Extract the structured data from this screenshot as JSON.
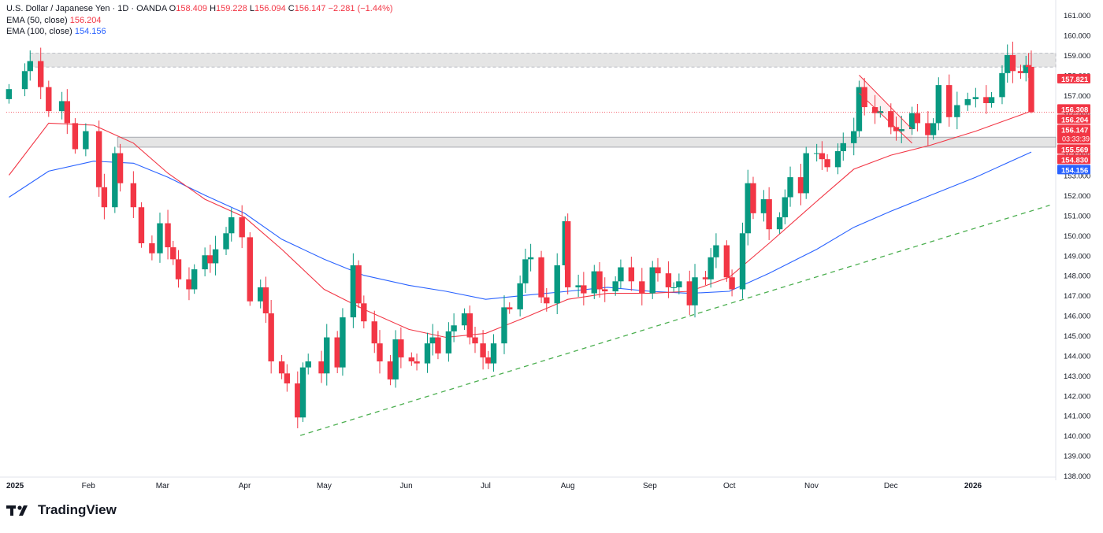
{
  "legend": {
    "symbol": "U.S. Dollar / Japanese Yen · 1D · OANDA",
    "o_label": "O",
    "o_value": "158.409",
    "h_label": "H",
    "h_value": "159.228",
    "l_label": "L",
    "l_value": "156.094",
    "c_label": "C",
    "c_value": "156.147",
    "change": "−2.281 (−1.44%)",
    "ema50_label": "EMA (50, close)",
    "ema50_value": "156.204",
    "ema100_label": "EMA (100, close)",
    "ema100_value": "154.156"
  },
  "brand": {
    "name": "TradingView"
  },
  "colors": {
    "up": "#089981",
    "down": "#f23645",
    "ema50": "#f23645",
    "ema100": "#2962ff",
    "trendline": "#4caf50",
    "zone": "#e0e0e0"
  },
  "chart_data": {
    "type": "candlestick",
    "title": "U.S. Dollar / Japanese Yen · 1D · OANDA",
    "x_tick_labels": [
      "2025",
      "Feb",
      "Mar",
      "Apr",
      "May",
      "Jun",
      "Jul",
      "Aug",
      "Sep",
      "Oct",
      "Nov",
      "Dec",
      "2026"
    ],
    "y_tick_labels": [
      "138.000",
      "139.000",
      "140.000",
      "141.000",
      "142.000",
      "143.000",
      "144.000",
      "145.000",
      "146.000",
      "147.000",
      "148.000",
      "149.000",
      "150.000",
      "151.000",
      "152.000",
      "153.000",
      "154.000",
      "155.000",
      "156.000",
      "157.000",
      "158.000",
      "159.000",
      "160.000",
      "161.000"
    ],
    "ylim": [
      138,
      161.2
    ],
    "close_path": [
      [
        "2025-01-02",
        157.3
      ],
      [
        "2025-01-08",
        158.2
      ],
      [
        "2025-01-10",
        158.7
      ],
      [
        "2025-01-14",
        157.4
      ],
      [
        "2025-01-17",
        156.2
      ],
      [
        "2025-01-22",
        156.7
      ],
      [
        "2025-01-24",
        155.6
      ],
      [
        "2025-01-27",
        154.3
      ],
      [
        "2025-01-31",
        155.2
      ],
      [
        "2025-02-05",
        152.4
      ],
      [
        "2025-02-07",
        151.4
      ],
      [
        "2025-02-11",
        154.1
      ],
      [
        "2025-02-13",
        152.6
      ],
      [
        "2025-02-18",
        151.4
      ],
      [
        "2025-02-21",
        149.6
      ],
      [
        "2025-02-25",
        149.1
      ],
      [
        "2025-02-28",
        150.6
      ],
      [
        "2025-03-03",
        149.4
      ],
      [
        "2025-03-05",
        148.8
      ],
      [
        "2025-03-07",
        147.8
      ],
      [
        "2025-03-11",
        147.3
      ],
      [
        "2025-03-13",
        148.3
      ],
      [
        "2025-03-17",
        149.0
      ],
      [
        "2025-03-19",
        148.6
      ],
      [
        "2025-03-21",
        149.3
      ],
      [
        "2025-03-25",
        150.1
      ],
      [
        "2025-03-27",
        150.9
      ],
      [
        "2025-03-31",
        149.9
      ],
      [
        "2025-04-03",
        146.7
      ],
      [
        "2025-04-07",
        147.4
      ],
      [
        "2025-04-09",
        146.1
      ],
      [
        "2025-04-11",
        143.7
      ],
      [
        "2025-04-15",
        143.1
      ],
      [
        "2025-04-17",
        142.6
      ],
      [
        "2025-04-21",
        140.9
      ],
      [
        "2025-04-23",
        143.4
      ],
      [
        "2025-04-25",
        143.7
      ],
      [
        "2025-04-30",
        143.1
      ],
      [
        "2025-05-02",
        144.9
      ],
      [
        "2025-05-06",
        143.4
      ],
      [
        "2025-05-08",
        145.9
      ],
      [
        "2025-05-12",
        148.5
      ],
      [
        "2025-05-14",
        146.6
      ],
      [
        "2025-05-16",
        145.7
      ],
      [
        "2025-05-20",
        144.6
      ],
      [
        "2025-05-22",
        143.7
      ],
      [
        "2025-05-26",
        142.8
      ],
      [
        "2025-05-28",
        144.8
      ],
      [
        "2025-05-30",
        143.9
      ],
      [
        "2025-06-03",
        143.7
      ],
      [
        "2025-06-05",
        143.6
      ],
      [
        "2025-06-09",
        144.6
      ],
      [
        "2025-06-11",
        144.9
      ],
      [
        "2025-06-13",
        144.1
      ],
      [
        "2025-06-17",
        145.2
      ],
      [
        "2025-06-19",
        145.5
      ],
      [
        "2025-06-23",
        146.1
      ],
      [
        "2025-06-25",
        144.9
      ],
      [
        "2025-06-27",
        144.6
      ],
      [
        "2025-06-30",
        143.9
      ],
      [
        "2025-07-02",
        143.6
      ],
      [
        "2025-07-04",
        144.6
      ],
      [
        "2025-07-08",
        146.4
      ],
      [
        "2025-07-10",
        146.3
      ],
      [
        "2025-07-14",
        147.6
      ],
      [
        "2025-07-16",
        148.8
      ],
      [
        "2025-07-18",
        148.9
      ],
      [
        "2025-07-22",
        146.9
      ],
      [
        "2025-07-24",
        146.6
      ],
      [
        "2025-07-28",
        148.5
      ],
      [
        "2025-07-31",
        150.7
      ],
      [
        "2025-08-01",
        147.4
      ],
      [
        "2025-08-05",
        147.5
      ],
      [
        "2025-08-07",
        147.1
      ],
      [
        "2025-08-11",
        148.2
      ],
      [
        "2025-08-13",
        147.3
      ],
      [
        "2025-08-15",
        147.2
      ],
      [
        "2025-08-19",
        147.7
      ],
      [
        "2025-08-21",
        148.4
      ],
      [
        "2025-08-25",
        147.7
      ],
      [
        "2025-08-29",
        147.1
      ],
      [
        "2025-09-02",
        148.4
      ],
      [
        "2025-09-04",
        148.1
      ],
      [
        "2025-09-08",
        147.4
      ],
      [
        "2025-09-10",
        147.4
      ],
      [
        "2025-09-12",
        147.7
      ],
      [
        "2025-09-16",
        146.5
      ],
      [
        "2025-09-18",
        147.9
      ],
      [
        "2025-09-22",
        147.8
      ],
      [
        "2025-09-24",
        148.9
      ],
      [
        "2025-09-26",
        149.5
      ],
      [
        "2025-09-30",
        147.9
      ],
      [
        "2025-10-02",
        147.3
      ],
      [
        "2025-10-06",
        150.1
      ],
      [
        "2025-10-08",
        152.6
      ],
      [
        "2025-10-10",
        151.1
      ],
      [
        "2025-10-14",
        151.8
      ],
      [
        "2025-10-16",
        150.3
      ],
      [
        "2025-10-20",
        150.9
      ],
      [
        "2025-10-22",
        151.9
      ],
      [
        "2025-10-24",
        152.9
      ],
      [
        "2025-10-28",
        152.1
      ],
      [
        "2025-10-30",
        154.1
      ],
      [
        "2025-11-03",
        154.1
      ],
      [
        "2025-11-05",
        153.8
      ],
      [
        "2025-11-07",
        153.4
      ],
      [
        "2025-11-11",
        154.2
      ],
      [
        "2025-11-13",
        154.6
      ],
      [
        "2025-11-17",
        155.2
      ],
      [
        "2025-11-19",
        157.4
      ],
      [
        "2025-11-21",
        156.4
      ],
      [
        "2025-11-25",
        156.1
      ],
      [
        "2025-11-27",
        156.2
      ],
      [
        "2025-12-01",
        155.4
      ],
      [
        "2025-12-03",
        155.2
      ],
      [
        "2025-12-05",
        155.3
      ],
      [
        "2025-12-09",
        156.1
      ],
      [
        "2025-12-11",
        155.6
      ],
      [
        "2025-12-15",
        155.0
      ],
      [
        "2025-12-17",
        155.6
      ],
      [
        "2025-12-19",
        157.5
      ],
      [
        "2025-12-23",
        155.9
      ],
      [
        "2025-12-26",
        156.5
      ],
      [
        "2025-12-30",
        156.8
      ],
      [
        "2026-01-02",
        156.9
      ],
      [
        "2026-01-06",
        156.6
      ],
      [
        "2026-01-08",
        156.9
      ],
      [
        "2026-01-12",
        158.1
      ],
      [
        "2026-01-14",
        159.0
      ],
      [
        "2026-01-16",
        158.2
      ],
      [
        "2026-01-19",
        158.1
      ],
      [
        "2026-01-21",
        158.5
      ],
      [
        "2026-01-22",
        158.4
      ],
      [
        "2026-01-23",
        156.147
      ]
    ],
    "last_bar": {
      "open": 158.409,
      "high": 159.228,
      "low": 156.094,
      "close": 156.147
    },
    "ema50_path": [
      [
        "2025-01-02",
        153.0
      ],
      [
        "2025-01-17",
        155.6
      ],
      [
        "2025-02-03",
        155.5
      ],
      [
        "2025-02-18",
        154.6
      ],
      [
        "2025-03-03",
        153.1
      ],
      [
        "2025-03-17",
        151.8
      ],
      [
        "2025-04-01",
        150.9
      ],
      [
        "2025-04-15",
        149.3
      ],
      [
        "2025-05-01",
        147.3
      ],
      [
        "2025-05-16",
        146.3
      ],
      [
        "2025-06-02",
        145.3
      ],
      [
        "2025-06-16",
        144.9
      ],
      [
        "2025-07-01",
        145.1
      ],
      [
        "2025-07-16",
        145.9
      ],
      [
        "2025-08-01",
        146.8
      ],
      [
        "2025-08-16",
        147.1
      ],
      [
        "2025-09-01",
        147.1
      ],
      [
        "2025-09-16",
        147.2
      ],
      [
        "2025-10-01",
        147.9
      ],
      [
        "2025-10-16",
        149.6
      ],
      [
        "2025-11-03",
        151.7
      ],
      [
        "2025-11-17",
        153.3
      ],
      [
        "2025-12-01",
        154.0
      ],
      [
        "2025-12-16",
        154.5
      ],
      [
        "2026-01-02",
        155.2
      ],
      [
        "2026-01-23",
        156.204
      ]
    ],
    "ema100_path": [
      [
        "2025-01-02",
        151.9
      ],
      [
        "2025-01-17",
        153.2
      ],
      [
        "2025-02-03",
        153.7
      ],
      [
        "2025-02-18",
        153.6
      ],
      [
        "2025-03-03",
        152.9
      ],
      [
        "2025-03-17",
        152.0
      ],
      [
        "2025-04-01",
        151.1
      ],
      [
        "2025-04-15",
        149.8
      ],
      [
        "2025-05-01",
        148.8
      ],
      [
        "2025-05-16",
        148.0
      ],
      [
        "2025-06-02",
        147.5
      ],
      [
        "2025-06-16",
        147.2
      ],
      [
        "2025-07-01",
        146.8
      ],
      [
        "2025-07-16",
        147.0
      ],
      [
        "2025-08-01",
        147.2
      ],
      [
        "2025-08-16",
        147.4
      ],
      [
        "2025-09-01",
        147.2
      ],
      [
        "2025-09-16",
        147.1
      ],
      [
        "2025-10-01",
        147.2
      ],
      [
        "2025-10-16",
        148.1
      ],
      [
        "2025-11-03",
        149.3
      ],
      [
        "2025-11-17",
        150.4
      ],
      [
        "2025-12-01",
        151.2
      ],
      [
        "2025-12-16",
        152.0
      ],
      [
        "2026-01-02",
        152.9
      ],
      [
        "2026-01-23",
        154.156
      ]
    ],
    "trendline": {
      "from": [
        "2025-04-22",
        140.0
      ],
      "to": [
        "2026-01-30",
        151.5
      ]
    },
    "resistance_zone": {
      "from": "2025-01-10",
      "to": "2026-01-30",
      "low": 158.4,
      "high": 159.1
    },
    "support_zone": {
      "from": "2025-02-12",
      "to": "2026-01-30",
      "low": 154.4,
      "high": 154.9
    },
    "channel": {
      "start": "2025-11-19",
      "end": "2025-12-09",
      "top": [
        158.0,
        155.3
      ],
      "bottom": [
        157.1,
        154.6
      ]
    },
    "horizontal_line": 156.147,
    "price_labels": [
      {
        "value": 157.821,
        "label": "157.821",
        "color": "#f23645"
      },
      {
        "value": 156.308,
        "label": "156.308",
        "color": "#f23645"
      },
      {
        "value": 156.204,
        "label": "156.204",
        "color": "#f23645"
      },
      {
        "value": 156.147,
        "label": "156.147",
        "sublabel": "03:33:39",
        "color": "#f23645"
      },
      {
        "value": 155.569,
        "label": "155.569",
        "color": "#f23645"
      },
      {
        "value": 154.83,
        "label": "154.830",
        "color": "#f23645"
      },
      {
        "value": 154.156,
        "label": "154.156",
        "color": "#2962ff"
      }
    ],
    "grid": false,
    "legend": "top-left"
  }
}
